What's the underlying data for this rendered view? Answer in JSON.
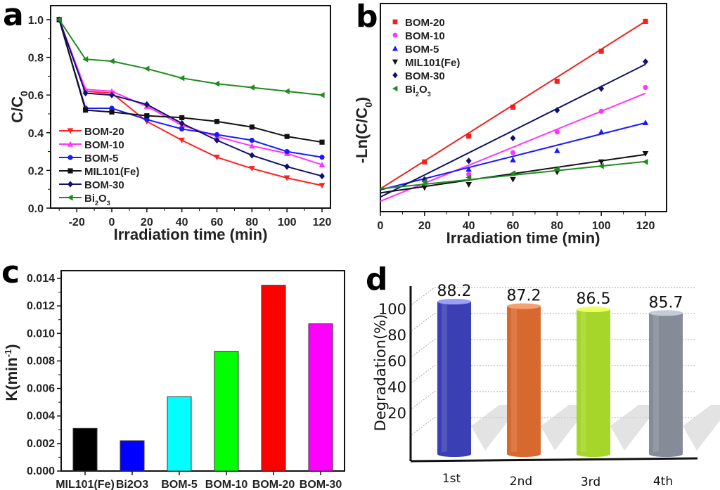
{
  "panels": {
    "a": "a",
    "b": "b",
    "c": "c",
    "d": "d"
  },
  "chart_data": [
    {
      "id": "a",
      "type": "line",
      "title": "",
      "xlabel": "Irradiation time (min)",
      "ylabel": "C/C0",
      "ylabel_main": "C/C",
      "ylabel_sub": "0",
      "xlim": [
        -33,
        125
      ],
      "ylim": [
        0.0,
        1.1
      ],
      "xticks": [
        -20,
        0,
        20,
        40,
        60,
        80,
        100,
        120
      ],
      "xtick_labels": [
        "-20",
        "0",
        "20",
        "40",
        "60",
        "80",
        "100",
        "120"
      ],
      "yticks": [
        0.0,
        0.2,
        0.4,
        0.6,
        0.8,
        1.0
      ],
      "ytick_labels": [
        "0.0",
        "0.2",
        "0.4",
        "0.6",
        "0.8",
        "1.0"
      ],
      "grid": false,
      "legend_position": "lower-left",
      "x": [
        -30,
        -15,
        0,
        20,
        40,
        60,
        80,
        100,
        120
      ],
      "series": [
        {
          "name": "BOM-20",
          "label_main": "BOM-20",
          "label_sub": "",
          "label_tail": "",
          "color": "#ff2020",
          "marker": "triangle-down",
          "values": [
            1.0,
            0.62,
            0.61,
            0.46,
            0.36,
            0.27,
            0.21,
            0.16,
            0.12
          ]
        },
        {
          "name": "BOM-10",
          "label_main": "BOM-10",
          "label_sub": "",
          "label_tail": "",
          "color": "#ff33ff",
          "marker": "triangle-up",
          "values": [
            1.0,
            0.63,
            0.62,
            0.54,
            0.44,
            0.38,
            0.33,
            0.29,
            0.23
          ]
        },
        {
          "name": "BOM-5",
          "label_main": "BOM-5",
          "label_sub": "",
          "label_tail": "",
          "color": "#1a1aff",
          "marker": "circle",
          "values": [
            1.0,
            0.53,
            0.53,
            0.47,
            0.42,
            0.39,
            0.36,
            0.3,
            0.27
          ]
        },
        {
          "name": "MIL101(Fe)",
          "label_main": "MIL101(Fe)",
          "label_sub": "",
          "label_tail": "",
          "color": "#111111",
          "marker": "square",
          "values": [
            1.0,
            0.52,
            0.51,
            0.49,
            0.48,
            0.46,
            0.43,
            0.38,
            0.35
          ]
        },
        {
          "name": "BOM-30",
          "label_main": "BOM-30",
          "label_sub": "",
          "label_tail": "",
          "color": "#10106e",
          "marker": "diamond",
          "values": [
            1.0,
            0.61,
            0.6,
            0.55,
            0.45,
            0.36,
            0.28,
            0.22,
            0.17
          ]
        },
        {
          "name": "Bi2O3",
          "label_main": "Bi",
          "label_sub": "2",
          "label_tail": "O",
          "label_sub2": "3",
          "color": "#1f8a1f",
          "marker": "triangle-left",
          "values": [
            1.0,
            0.79,
            0.78,
            0.74,
            0.69,
            0.66,
            0.64,
            0.62,
            0.6
          ]
        }
      ]
    },
    {
      "id": "b",
      "type": "scatter",
      "title": "",
      "xlabel": "Irradiation time (min)",
      "ylabel": "-Ln(C/C0)",
      "ylabel_main": "-Ln(C/C",
      "ylabel_sub": "0",
      "ylabel_tail": ")",
      "xlim": [
        0,
        130
      ],
      "ylim": [
        -0.2,
        1.8
      ],
      "xticks": [
        0,
        20,
        40,
        60,
        80,
        100,
        120
      ],
      "xtick_labels": [
        "0",
        "20",
        "40",
        "60",
        "80",
        "100",
        "120"
      ],
      "yticks_labeled": false,
      "grid": false,
      "legend_position": "top-left",
      "x": [
        20,
        40,
        60,
        80,
        100,
        120
      ],
      "series": [
        {
          "name": "BOM-20",
          "label_main": "BOM-20",
          "label_sub": "",
          "label_tail": "",
          "color": "#ee2222",
          "marker": "square",
          "values": [
            0.27,
            0.52,
            0.8,
            1.05,
            1.34,
            1.63
          ],
          "fit": [
            0.01,
            0.0135
          ]
        },
        {
          "name": "BOM-10",
          "label_main": "BOM-10",
          "label_sub": "",
          "label_tail": "",
          "color": "#ff33ff",
          "marker": "circle",
          "values": [
            0.09,
            0.15,
            0.36,
            0.56,
            0.76,
            0.99
          ],
          "fit": [
            -0.11,
            0.0087
          ]
        },
        {
          "name": "BOM-5",
          "label_main": "BOM-5",
          "label_sub": "",
          "label_tail": "",
          "color": "#1a1aff",
          "marker": "triangle-up",
          "values": [
            0.1,
            0.2,
            0.29,
            0.38,
            0.56,
            0.65
          ],
          "fit": [
            0.0,
            0.0054
          ]
        },
        {
          "name": "MIL101(Fe)",
          "label_main": "MIL101(Fe)",
          "label_sub": "",
          "label_tail": "",
          "color": "#111111",
          "marker": "triangle-down",
          "values": [
            0.02,
            0.05,
            0.1,
            0.17,
            0.27,
            0.35
          ],
          "fit": [
            -0.03,
            0.0031
          ]
        },
        {
          "name": "BOM-30",
          "label_main": "BOM-30",
          "label_sub": "",
          "label_tail": "",
          "color": "#10106e",
          "marker": "diamond",
          "values": [
            0.1,
            0.28,
            0.5,
            0.77,
            0.98,
            1.24
          ],
          "fit": [
            -0.07,
            0.0107
          ]
        },
        {
          "name": "Bi2O3",
          "label_main": "Bi",
          "label_sub": "2",
          "label_tail": "O",
          "label_sub2": "3",
          "color": "#1f8a1f",
          "marker": "triangle-left",
          "values": [
            0.08,
            0.12,
            0.16,
            0.2,
            0.23,
            0.27
          ],
          "fit": [
            0.01,
            0.0022
          ]
        }
      ]
    },
    {
      "id": "c",
      "type": "bar",
      "title": "",
      "xlabel": "",
      "ylabel": "K(min-1)",
      "ylabel_main": "K(min",
      "ylabel_sup": "-1",
      "ylabel_tail": ")",
      "ylim": [
        0,
        0.0145
      ],
      "yticks": [
        0.0,
        0.002,
        0.004,
        0.006,
        0.008,
        0.01,
        0.012,
        0.014
      ],
      "ytick_labels": [
        "0.000",
        "0.002",
        "0.004",
        "0.006",
        "0.008",
        "0.010",
        "0.012",
        "0.014"
      ],
      "grid": false,
      "categories": [
        "MIL101(Fe)",
        "Bi2O3",
        "BOM-5",
        "BOM-10",
        "BOM-20",
        "BOM-30"
      ],
      "values": [
        0.0031,
        0.0022,
        0.0054,
        0.0087,
        0.0135,
        0.0107
      ],
      "colors": [
        "#000000",
        "#0000ff",
        "#00ffff",
        "#00ff00",
        "#ff0000",
        "#ff00ff"
      ]
    },
    {
      "id": "d",
      "type": "bar",
      "style": "3d-cylinder",
      "title": "",
      "xlabel": "",
      "ylabel": "Degradation(%)",
      "ylim": [
        0,
        110
      ],
      "yticks": [
        20,
        40,
        60,
        80,
        100
      ],
      "ytick_labels": [
        "20",
        "40",
        "60",
        "80",
        "100"
      ],
      "grid": true,
      "categories": [
        "1st",
        "2nd",
        "3rd",
        "4th"
      ],
      "values": [
        88.2,
        87.2,
        86.5,
        85.7
      ],
      "value_labels": [
        "88.2",
        "87.2",
        "86.5",
        "85.7"
      ],
      "colors": [
        "#3b3fb4",
        "#d8692e",
        "#a6d62a",
        "#868b98"
      ],
      "top_colors": [
        "#9aa0f5",
        "#f5a070",
        "#f0ff60",
        "#c5cad6"
      ]
    }
  ]
}
